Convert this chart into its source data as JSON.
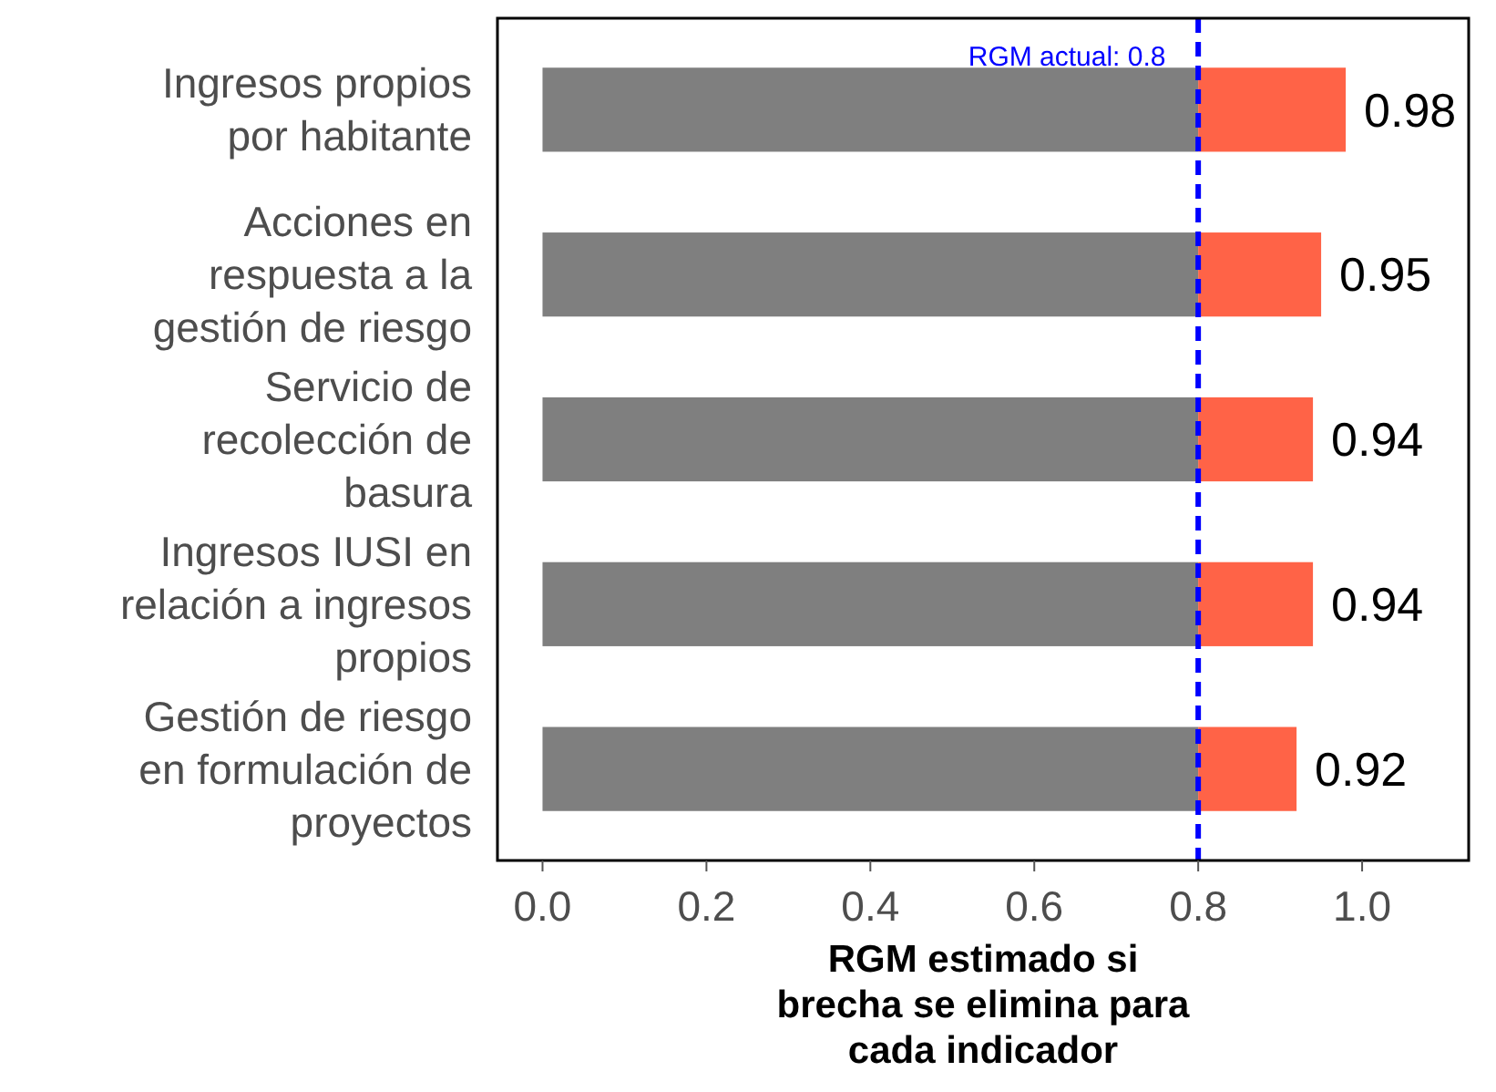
{
  "chart_data": {
    "type": "bar",
    "orientation": "horizontal",
    "stacked": true,
    "xlabel": "RGM estimado si brecha se elimina para cada indicador",
    "categories": [
      "Ingresos propios por habitante",
      "Acciones en respuesta a la gestión de riesgo",
      "Servicio de recolección de basura",
      "Ingresos IUSI en relación a ingresos propios",
      "Gestión de riesgo en formulación de proyectos"
    ],
    "series": [
      {
        "color": "#7f7f7f",
        "values": [
          0.8,
          0.8,
          0.8,
          0.8,
          0.8
        ]
      },
      {
        "color": "#ff6347",
        "values": [
          0.18,
          0.15,
          0.14,
          0.14,
          0.12
        ]
      }
    ],
    "totals": [
      "0.98",
      "0.95",
      "0.94",
      "0.94",
      "0.92"
    ],
    "xlim": [
      -0.055,
      1.13
    ],
    "xticks": [
      {
        "value": 0,
        "label": "0.0"
      },
      {
        "value": 0.2,
        "label": "0.2"
      },
      {
        "value": 0.4,
        "label": "0.4"
      },
      {
        "value": 0.6,
        "label": "0.6"
      },
      {
        "value": 0.8,
        "label": "0.8"
      },
      {
        "value": 1,
        "label": "1.0"
      }
    ],
    "ref_lines": [
      {
        "axis": "x",
        "value": 0.8,
        "label": "RGM actual: 0.8",
        "color": "#0000ff",
        "line_style": "dashed"
      }
    ]
  }
}
